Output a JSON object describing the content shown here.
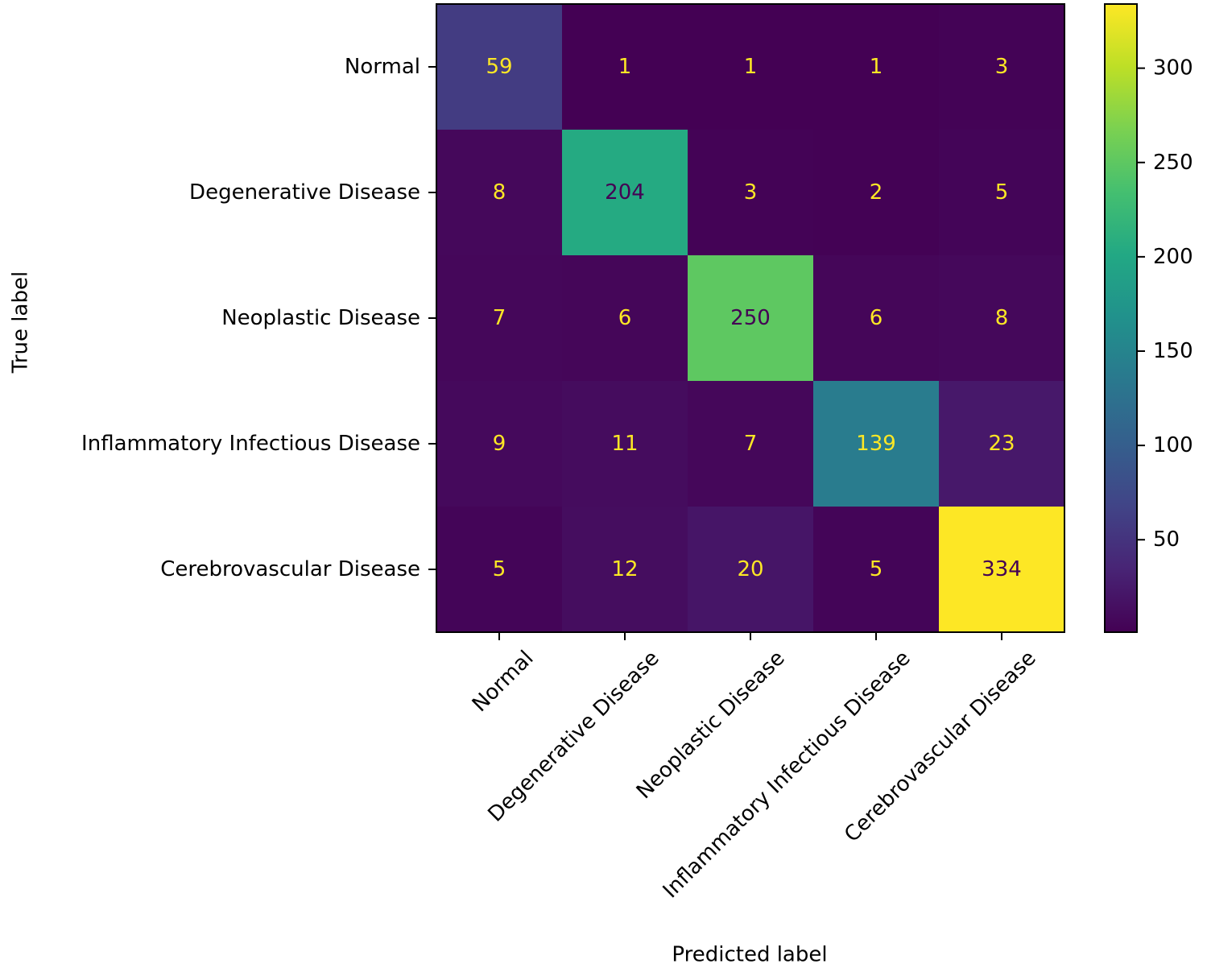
{
  "chart_data": {
    "type": "heatmap",
    "title": "",
    "xlabel": "Predicted label",
    "ylabel": "True label",
    "x_categories": [
      "Normal",
      "Degenerative Disease",
      "Neoplastic Disease",
      "Inflammatory Infectious Disease",
      "Cerebrovascular Disease"
    ],
    "y_categories": [
      "Normal",
      "Degenerative Disease",
      "Neoplastic Disease",
      "Inflammatory Infectious Disease",
      "Cerebrovascular Disease"
    ],
    "matrix": [
      [
        59,
        1,
        1,
        1,
        3
      ],
      [
        8,
        204,
        3,
        2,
        5
      ],
      [
        7,
        6,
        250,
        6,
        8
      ],
      [
        9,
        11,
        7,
        139,
        23
      ],
      [
        5,
        12,
        20,
        5,
        334
      ]
    ],
    "colormap": "viridis",
    "colorbar": {
      "min": 1,
      "max": 334,
      "ticks": [
        50,
        100,
        150,
        200,
        250,
        300
      ]
    },
    "text_colors": {
      "low": "#fde725",
      "high": "#440154"
    }
  }
}
